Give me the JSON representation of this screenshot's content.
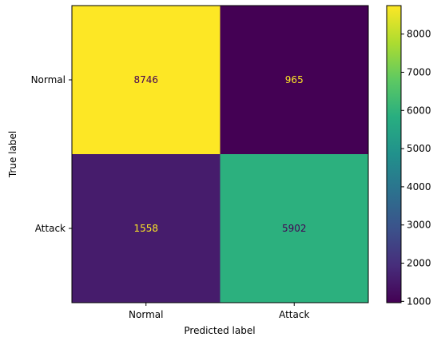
{
  "chart_data": {
    "type": "heatmap",
    "title": "",
    "xlabel": "Predicted label",
    "ylabel": "True label",
    "x_categories": [
      "Normal",
      "Attack"
    ],
    "y_categories": [
      "Normal",
      "Attack"
    ],
    "values": [
      [
        8746,
        965
      ],
      [
        1558,
        5902
      ]
    ],
    "colormap": "viridis",
    "colorbar": {
      "vmin": 965,
      "vmax": 8746,
      "ticks": [
        1000,
        2000,
        3000,
        4000,
        5000,
        6000,
        7000,
        8000
      ],
      "tick_labels": [
        "1000",
        "2000",
        "3000",
        "4000",
        "5000",
        "6000",
        "7000",
        "8000"
      ]
    },
    "cell_text_colors": {
      "on_dark": "#fde725",
      "on_light": "#440154"
    },
    "grid": false
  }
}
